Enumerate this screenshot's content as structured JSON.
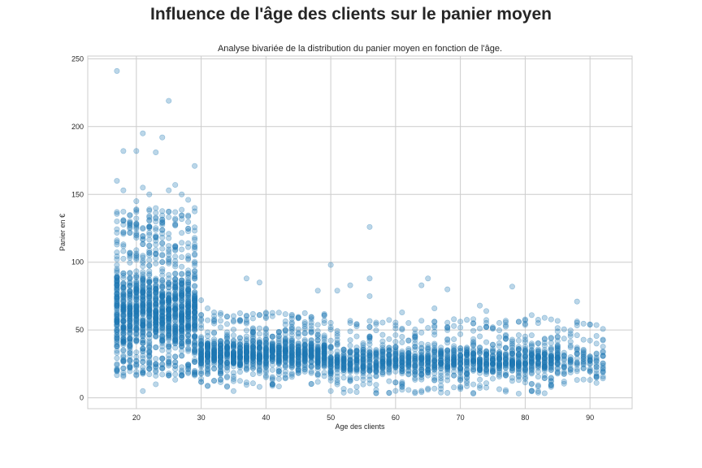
{
  "suptitle": "Influence de l'âge des clients sur le panier moyen",
  "chart_data": {
    "type": "scatter",
    "title": "Analyse bivariée de la distribution du panier moyen en fonction de l'âge.",
    "xlabel": "Age des clients",
    "ylabel": "Panier en €",
    "xlim": [
      12.5,
      96.5
    ],
    "ylim": [
      -8,
      252
    ],
    "xticks": [
      20,
      30,
      40,
      50,
      60,
      70,
      80,
      90
    ],
    "yticks": [
      0,
      50,
      100,
      150,
      200,
      250
    ],
    "grid": true,
    "marker_color": "#1f77b4",
    "marker_alpha": 0.3,
    "age_range": [
      17,
      92
    ],
    "dense_bands": [
      {
        "age_from": 17,
        "age_to": 29,
        "low": 28,
        "high": 100
      },
      {
        "age_from": 30,
        "age_to": 49,
        "low": 20,
        "high": 45
      },
      {
        "age_from": 50,
        "age_to": 92,
        "low": 15,
        "high": 40
      }
    ],
    "outliers": [
      [
        17,
        241
      ],
      [
        25,
        219
      ],
      [
        21,
        195
      ],
      [
        24,
        192
      ],
      [
        18,
        182
      ],
      [
        20,
        182
      ],
      [
        23,
        181
      ],
      [
        29,
        171
      ],
      [
        17,
        160
      ],
      [
        26,
        157
      ],
      [
        21,
        155
      ],
      [
        25,
        153
      ],
      [
        18,
        153
      ],
      [
        22,
        150
      ],
      [
        27,
        150
      ],
      [
        28,
        146
      ],
      [
        20,
        145
      ],
      [
        29,
        140
      ],
      [
        56,
        126
      ],
      [
        50,
        98
      ],
      [
        56,
        88
      ],
      [
        37,
        88
      ],
      [
        65,
        88
      ],
      [
        64,
        83
      ],
      [
        53,
        83
      ],
      [
        39,
        85
      ],
      [
        78,
        82
      ],
      [
        68,
        80
      ],
      [
        48,
        79
      ],
      [
        51,
        79
      ],
      [
        88,
        71
      ],
      [
        56,
        75
      ],
      [
        73,
        68
      ],
      [
        74,
        64
      ],
      [
        66,
        66
      ],
      [
        81,
        61
      ],
      [
        61,
        63
      ],
      [
        72,
        58
      ],
      [
        83,
        59
      ],
      [
        35,
        5
      ],
      [
        50,
        5
      ],
      [
        21,
        5
      ],
      [
        84,
        8
      ],
      [
        91,
        11
      ],
      [
        92,
        19
      ],
      [
        23,
        10
      ],
      [
        30,
        72
      ],
      [
        31,
        66
      ]
    ]
  }
}
